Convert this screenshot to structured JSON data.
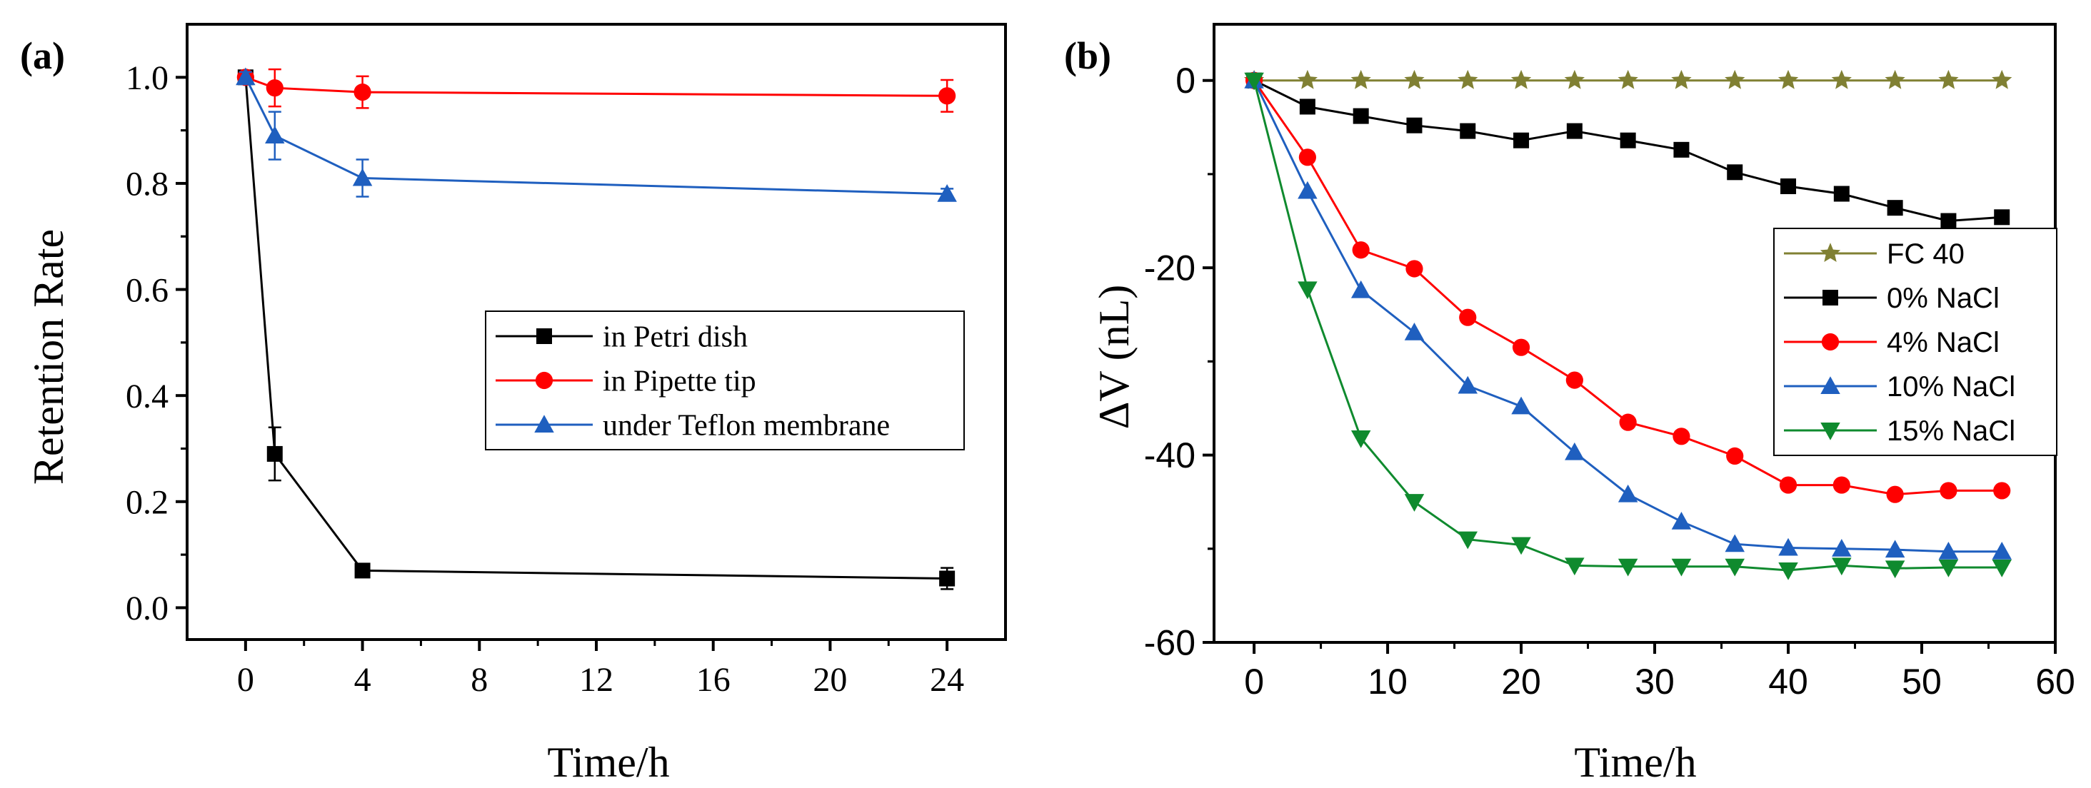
{
  "colors": {
    "black": "#000000",
    "red": "#ff0000",
    "blue": "#1f5fbf",
    "green": "#0f8a2e",
    "olive": "#808033"
  },
  "chart_data": [
    {
      "panel_label": "(a)",
      "type": "line",
      "xlabel": "Time/h",
      "ylabel": "Retention Rate",
      "xlim": [
        -2,
        26
      ],
      "ylim": [
        -0.06,
        1.1
      ],
      "xticks": [
        0,
        4,
        8,
        12,
        16,
        20,
        24
      ],
      "xtick_labels": [
        "0",
        "4",
        "8",
        "12",
        "16",
        "20",
        "24"
      ],
      "yticks": [
        0.0,
        0.2,
        0.4,
        0.6,
        0.8,
        1.0
      ],
      "ytick_labels": [
        "0.0",
        "0.2",
        "0.4",
        "0.6",
        "0.8",
        "1.0"
      ],
      "legend_position": "center-right",
      "series": [
        {
          "name": "in Petri dish",
          "color": "#000000",
          "marker": "square",
          "x": [
            0,
            1,
            4,
            24
          ],
          "y": [
            1.0,
            0.29,
            0.07,
            0.055
          ],
          "err": [
            0.01,
            0.05,
            0.008,
            0.02
          ]
        },
        {
          "name": "in Pipette tip",
          "color": "#ff0000",
          "marker": "circle",
          "x": [
            0,
            1,
            4,
            24
          ],
          "y": [
            1.0,
            0.98,
            0.972,
            0.965
          ],
          "err": [
            0.01,
            0.035,
            0.03,
            0.03
          ]
        },
        {
          "name": "under Teflon membrane",
          "color": "#1f5fbf",
          "marker": "triangle-up",
          "x": [
            0,
            1,
            4,
            24
          ],
          "y": [
            1.0,
            0.89,
            0.81,
            0.78
          ],
          "err": [
            0.01,
            0.045,
            0.035,
            0.01
          ]
        }
      ]
    },
    {
      "panel_label": "(b)",
      "type": "line",
      "xlabel": "Time/h",
      "ylabel": "ΔV (nL)",
      "xlim": [
        -3,
        60
      ],
      "ylim": [
        -60,
        6
      ],
      "xticks": [
        0,
        10,
        20,
        30,
        40,
        50,
        60
      ],
      "xtick_labels": [
        "0",
        "10",
        "20",
        "30",
        "40",
        "50",
        "60"
      ],
      "yticks": [
        0,
        -20,
        -40,
        -60
      ],
      "ytick_labels": [
        "0",
        "-20",
        "-40",
        "-60"
      ],
      "legend_position": "right",
      "series": [
        {
          "name": "FC 40",
          "color": "#808033",
          "marker": "star",
          "x": [
            0,
            4,
            8,
            12,
            16,
            20,
            24,
            28,
            32,
            36,
            40,
            44,
            48,
            52,
            56
          ],
          "y": [
            0,
            0,
            0,
            0,
            0,
            0,
            0,
            0,
            0,
            0,
            0,
            0,
            0,
            0,
            0
          ]
        },
        {
          "name": "0% NaCl",
          "color": "#000000",
          "marker": "square",
          "x": [
            0,
            4,
            8,
            12,
            16,
            20,
            24,
            28,
            32,
            36,
            40,
            44,
            48,
            52,
            56
          ],
          "y": [
            0,
            -2.8,
            -3.8,
            -4.8,
            -5.4,
            -6.4,
            -5.4,
            -6.4,
            -7.4,
            -9.8,
            -11.3,
            -12.1,
            -13.6,
            -15.0,
            -14.6
          ]
        },
        {
          "name": "4% NaCl",
          "color": "#ff0000",
          "marker": "circle",
          "x": [
            0,
            4,
            8,
            12,
            16,
            20,
            24,
            28,
            32,
            36,
            40,
            44,
            48,
            52,
            56
          ],
          "y": [
            0,
            -8.2,
            -18.1,
            -20.1,
            -25.3,
            -28.5,
            -32.0,
            -36.5,
            -38.0,
            -40.1,
            -43.2,
            -43.2,
            -44.2,
            -43.8,
            -43.8
          ]
        },
        {
          "name": "10% NaCl",
          "color": "#1f5fbf",
          "marker": "triangle-up",
          "x": [
            0,
            4,
            8,
            12,
            16,
            20,
            24,
            28,
            32,
            36,
            40,
            44,
            48,
            52,
            56
          ],
          "y": [
            0,
            -11.8,
            -22.4,
            -26.9,
            -32.6,
            -34.8,
            -39.7,
            -44.2,
            -47.1,
            -49.5,
            -49.9,
            -50.0,
            -50.1,
            -50.3,
            -50.3
          ]
        },
        {
          "name": "15% NaCl",
          "color": "#0f8a2e",
          "marker": "triangle-down",
          "x": [
            0,
            4,
            8,
            12,
            16,
            20,
            24,
            28,
            32,
            36,
            40,
            44,
            48,
            52,
            56
          ],
          "y": [
            0,
            -22.3,
            -38.2,
            -45.0,
            -49.0,
            -49.6,
            -51.8,
            -51.9,
            -51.9,
            -51.9,
            -52.3,
            -51.8,
            -52.1,
            -52.0,
            -52.0
          ]
        }
      ]
    }
  ]
}
